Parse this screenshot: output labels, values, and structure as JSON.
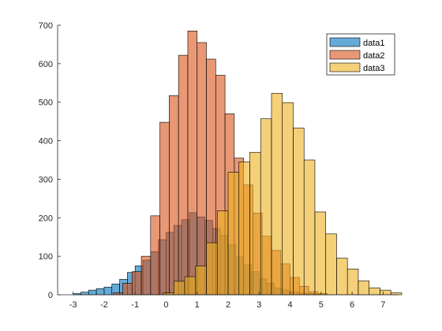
{
  "chart_data": {
    "type": "bar",
    "xlim": [
      -3.5,
      7.5
    ],
    "ylim": [
      0,
      700
    ],
    "x_ticks": [
      -3,
      -2,
      -1,
      0,
      1,
      2,
      3,
      4,
      5,
      6,
      7
    ],
    "y_ticks": [
      0,
      100,
      200,
      300,
      400,
      500,
      600,
      700
    ],
    "grid": false,
    "legend_position": "top-right",
    "series": [
      {
        "name": "data1",
        "color": "#0072BD",
        "bin_width": 0.25,
        "bin_start": -3.0,
        "values": [
          3,
          7,
          12,
          16,
          20,
          28,
          40,
          58,
          75,
          90,
          112,
          143,
          162,
          180,
          195,
          213,
          202,
          193,
          172,
          155,
          130,
          98,
          78,
          60,
          42,
          30,
          18,
          12,
          8,
          5,
          3,
          2
        ]
      },
      {
        "name": "data2",
        "color": "#D95319",
        "bin_width": 0.3,
        "bin_start": -1.7,
        "values": [
          5,
          30,
          60,
          100,
          205,
          448,
          517,
          622,
          685,
          655,
          612,
          570,
          470,
          355,
          285,
          212,
          152,
          115,
          80,
          45,
          22,
          8,
          3
        ]
      },
      {
        "name": "data3",
        "color": "#EDB120",
        "bin_width": 0.35,
        "bin_start": -0.1,
        "values": [
          5,
          35,
          47,
          75,
          135,
          218,
          318,
          345,
          370,
          457,
          523,
          499,
          433,
          350,
          215,
          158,
          95,
          67,
          36,
          18,
          12,
          5
        ]
      }
    ]
  }
}
